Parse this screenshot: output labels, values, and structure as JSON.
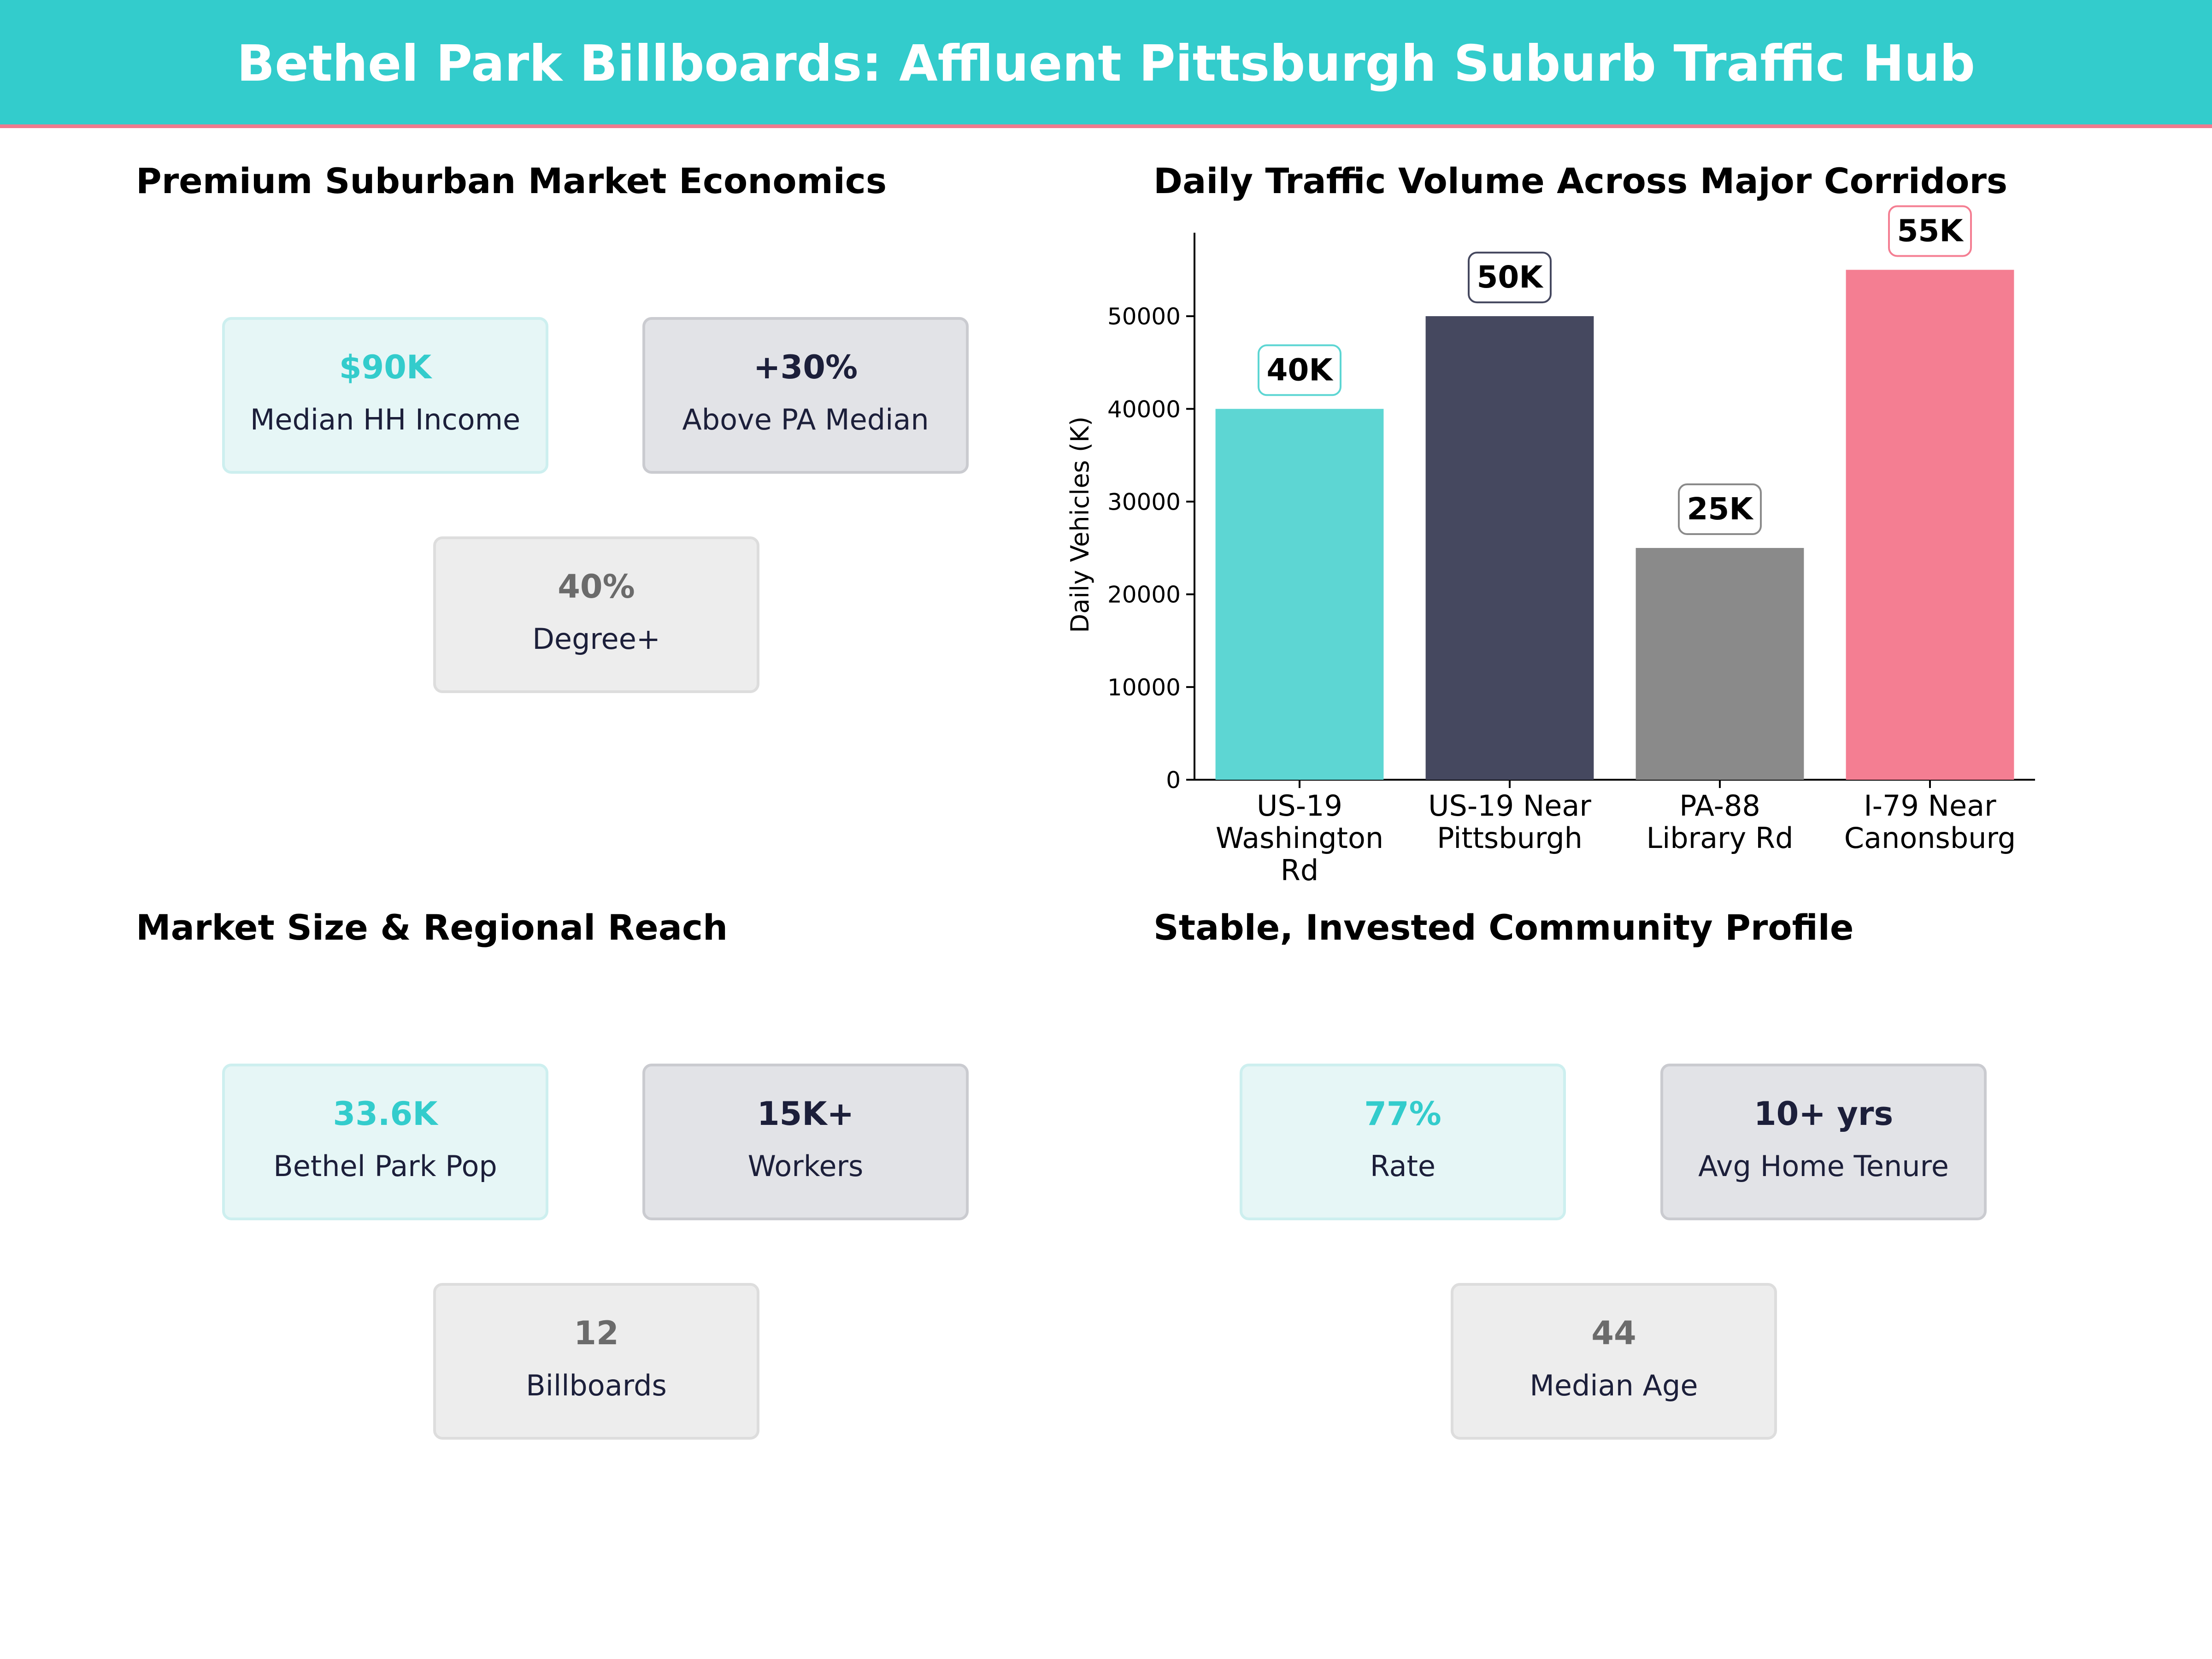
{
  "header": {
    "title": "Bethel Park Billboards: Affluent Pittsburgh Suburb Traffic Hub"
  },
  "panels": {
    "economics": {
      "title": "Premium Suburban Market Economics",
      "cards": [
        {
          "value": "$90K",
          "label": "Median HH Income"
        },
        {
          "value": "+30%",
          "label": "Above PA Median"
        },
        {
          "value": "40%",
          "label": "Degree+"
        }
      ]
    },
    "market": {
      "title": "Market Size & Regional Reach",
      "cards": [
        {
          "value": "33.6K",
          "label": "Bethel Park Pop"
        },
        {
          "value": "15K+",
          "label": "Workers"
        },
        {
          "value": "12",
          "label": "Billboards"
        }
      ]
    },
    "community": {
      "title": "Stable, Invested Community Profile",
      "cards": [
        {
          "value": "77%",
          "label": "Rate"
        },
        {
          "value": "10+ yrs",
          "label": "Avg Home Tenure"
        },
        {
          "value": "44",
          "label": "Median Age"
        }
      ]
    }
  },
  "colors": {
    "teal": "#33CCCC",
    "dark": "#1c1f3a",
    "gray": "#8a8a8a",
    "pink": "#F07A8E"
  },
  "chart_data": {
    "type": "bar",
    "title": "Daily Traffic Volume Across Major Corridors",
    "ylabel": "Daily Vehicles (K)",
    "xlabel": "",
    "categories": [
      [
        "US-19",
        "Washington",
        "Rd"
      ],
      [
        "US-19 Near",
        "Pittsburgh"
      ],
      [
        "PA-88",
        "Library Rd"
      ],
      [
        "I-79 Near",
        "Canonsburg"
      ]
    ],
    "values": [
      40000,
      50000,
      25000,
      55000
    ],
    "data_labels": [
      "40K",
      "50K",
      "25K",
      "55K"
    ],
    "bar_colors": [
      "#5DD6D3",
      "#45485F",
      "#8A8A8A",
      "#F47E92"
    ],
    "label_border_colors": [
      "#5DD6D3",
      "#45485F",
      "#8A8A8A",
      "#F47E92"
    ],
    "yticks": [
      0,
      10000,
      20000,
      30000,
      40000,
      50000
    ],
    "ylim": [
      0,
      59000
    ],
    "grid": false
  }
}
